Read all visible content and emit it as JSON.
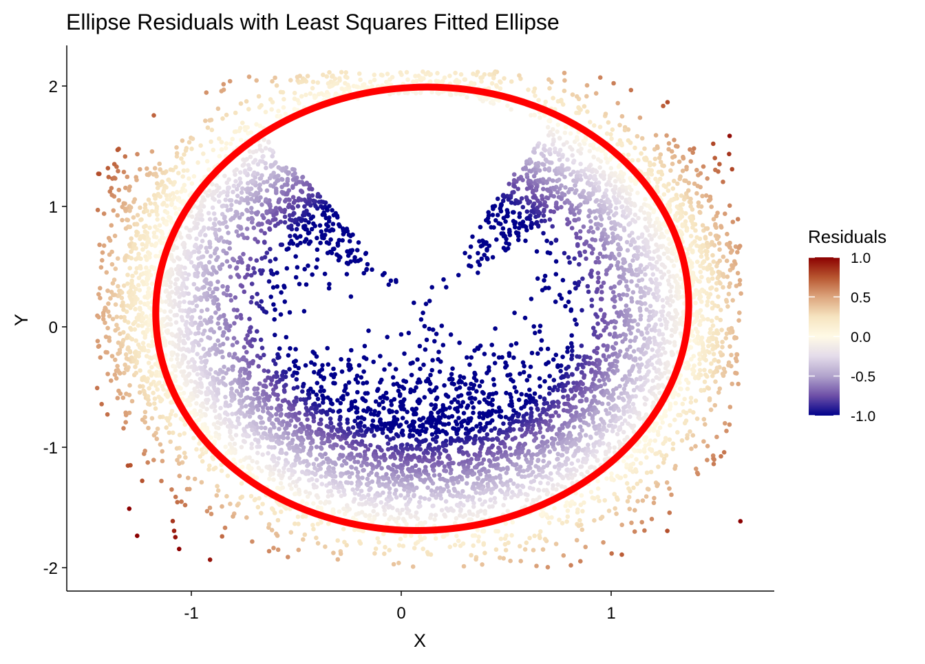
{
  "chart_data": {
    "type": "scatter",
    "title": "Ellipse Residuals with Least Squares Fitted Ellipse",
    "xlabel": "X",
    "ylabel": "Y",
    "xlim": [
      -1.6,
      1.77
    ],
    "ylim": [
      -2.2,
      2.33
    ],
    "x_ticks": [
      -1,
      0,
      1
    ],
    "x_tick_labels": [
      "-1",
      "0",
      "1"
    ],
    "y_ticks": [
      -2,
      -1,
      0,
      1,
      2
    ],
    "y_tick_labels": [
      "-2",
      "-1",
      "0",
      "1",
      "2"
    ],
    "grid": false,
    "legend": {
      "title": "Residuals",
      "placement": "right",
      "range": [
        -1.0,
        1.0
      ],
      "ticks": [
        1.0,
        0.5,
        0.0,
        -0.5,
        -1.0
      ],
      "tick_labels": [
        "1.0",
        "0.5",
        "0.0",
        "-0.5",
        "-1.0"
      ],
      "colors": [
        "#00008b",
        "#fffae6",
        "#8b0000"
      ],
      "gradient_stops": [
        "#8b0000",
        "#b7552f",
        "#dca57d",
        "#f6e4c0",
        "#fffae6",
        "#e4dcea",
        "#b1a3cc",
        "#6d4fa7",
        "#00008b"
      ]
    },
    "fitted_ellipse": {
      "color": "#ff0000",
      "center_x": 0.1,
      "center_y": 0.15,
      "semi_x": 1.27,
      "semi_y": 1.84,
      "rotation_deg": 3
    },
    "points": {
      "count": 9000,
      "approx_x_range": [
        -1.45,
        1.62
      ],
      "approx_y_range": [
        -2.0,
        2.12
      ],
      "residual_range": [
        -1.0,
        1.0
      ],
      "sparse_regions": [
        "upper center inside ellipse"
      ]
    }
  }
}
